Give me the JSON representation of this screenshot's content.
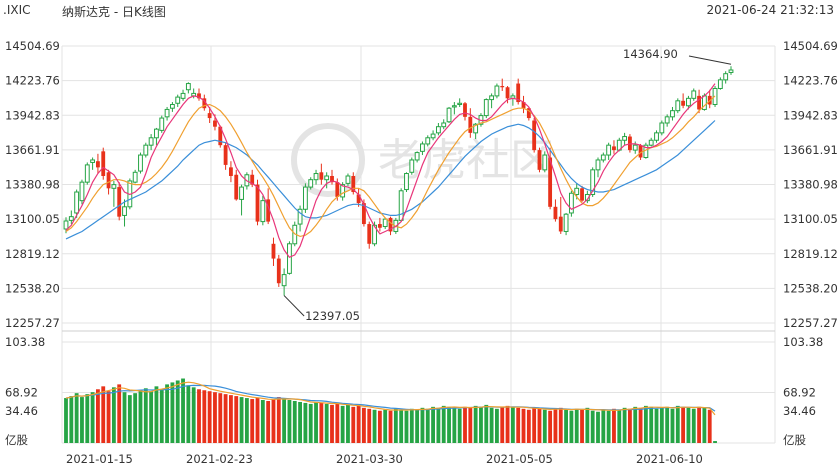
{
  "header": {
    "symbol": ".IXIC",
    "title": "纳斯达克 - 日K线图",
    "datetime": "2021-06-24 21:32:13"
  },
  "watermark": "老虎社区",
  "colors": {
    "up": "#26a445",
    "down": "#e8311a",
    "ma5": "#e8367a",
    "ma10": "#f0a030",
    "ma20": "#3a8fd9",
    "grid": "#e3e3e3"
  },
  "chart_data": {
    "type": "candlestick",
    "price_axis": {
      "ticks": [
        "14504.69",
        "14223.76",
        "13942.83",
        "13661.91",
        "13380.98",
        "13100.05",
        "12819.12",
        "12538.20",
        "12257.27"
      ],
      "range": [
        12257.27,
        14504.69
      ]
    },
    "volume_axis": {
      "ticks": [
        "103.38",
        "68.92",
        "34.46"
      ],
      "unit": "亿股",
      "range": [
        0,
        103.38
      ]
    },
    "x_labels": [
      "2021-01-15",
      "2021-02-23",
      "2021-03-30",
      "2021-05-05",
      "2021-06-10"
    ],
    "annotations": {
      "high": "14364.90",
      "low": "12397.05"
    },
    "candles": [
      [
        13020,
        13115,
        12985,
        13085
      ],
      [
        13090,
        13170,
        13060,
        13120
      ],
      [
        13150,
        13340,
        13110,
        13320
      ],
      [
        13250,
        13420,
        13220,
        13400
      ],
      [
        13400,
        13560,
        13380,
        13540
      ],
      [
        13560,
        13600,
        13500,
        13580
      ],
      [
        13570,
        13630,
        13470,
        13520
      ],
      [
        13650,
        13680,
        13420,
        13450
      ],
      [
        13480,
        13500,
        13300,
        13350
      ],
      [
        13350,
        13410,
        13200,
        13380
      ],
      [
        13360,
        13400,
        13090,
        13120
      ],
      [
        13130,
        13260,
        13040,
        13200
      ],
      [
        13200,
        13430,
        13180,
        13410
      ],
      [
        13400,
        13500,
        13390,
        13480
      ],
      [
        13490,
        13640,
        13470,
        13620
      ],
      [
        13620,
        13720,
        13600,
        13700
      ],
      [
        13700,
        13790,
        13660,
        13760
      ],
      [
        13760,
        13840,
        13700,
        13830
      ],
      [
        13820,
        13940,
        13800,
        13920
      ],
      [
        13930,
        14010,
        13900,
        13990
      ],
      [
        14000,
        14050,
        13970,
        14030
      ],
      [
        14040,
        14110,
        14010,
        14090
      ],
      [
        14080,
        14150,
        14060,
        14120
      ],
      [
        14150,
        14210,
        14120,
        14200
      ],
      [
        14100,
        14160,
        14080,
        14120
      ],
      [
        14120,
        14160,
        14060,
        14080
      ],
      [
        14080,
        14110,
        13980,
        14000
      ],
      [
        13960,
        14010,
        13880,
        13920
      ],
      [
        13900,
        13950,
        13820,
        13850
      ],
      [
        13850,
        13860,
        13680,
        13700
      ],
      [
        13700,
        13720,
        13500,
        13540
      ],
      [
        13520,
        13570,
        13400,
        13450
      ],
      [
        13460,
        13500,
        13250,
        13260
      ],
      [
        13260,
        13380,
        13130,
        13360
      ],
      [
        13370,
        13480,
        13340,
        13460
      ],
      [
        13460,
        13500,
        13360,
        13380
      ],
      [
        13380,
        13420,
        13050,
        13080
      ],
      [
        13080,
        13290,
        13050,
        13250
      ],
      [
        13260,
        13350,
        13060,
        13080
      ],
      [
        12900,
        12950,
        12720,
        12780
      ],
      [
        12780,
        12810,
        12550,
        12580
      ],
      [
        12560,
        12700,
        12480,
        12650
      ],
      [
        12660,
        12920,
        12650,
        12900
      ],
      [
        12900,
        13080,
        12880,
        13050
      ],
      [
        13060,
        13210,
        13000,
        13180
      ],
      [
        13180,
        13390,
        13150,
        13360
      ],
      [
        13360,
        13440,
        13340,
        13420
      ],
      [
        13420,
        13500,
        13380,
        13470
      ],
      [
        13480,
        13550,
        13380,
        13420
      ],
      [
        13420,
        13480,
        13350,
        13450
      ],
      [
        13450,
        13500,
        13380,
        13400
      ],
      [
        13400,
        13430,
        13250,
        13280
      ],
      [
        13280,
        13400,
        13250,
        13380
      ],
      [
        13390,
        13470,
        13370,
        13450
      ],
      [
        13450,
        13480,
        13300,
        13320
      ],
      [
        13300,
        13350,
        13200,
        13230
      ],
      [
        13230,
        13260,
        13040,
        13060
      ],
      [
        13060,
        13080,
        12860,
        12900
      ],
      [
        12900,
        13080,
        12880,
        13050
      ],
      [
        13060,
        13110,
        13000,
        13030
      ],
      [
        13040,
        13110,
        13020,
        13100
      ],
      [
        13110,
        13120,
        12970,
        13000
      ],
      [
        13000,
        13110,
        12980,
        13090
      ],
      [
        13090,
        13350,
        13080,
        13330
      ],
      [
        13340,
        13480,
        13320,
        13470
      ],
      [
        13480,
        13600,
        13460,
        13580
      ],
      [
        13580,
        13650,
        13560,
        13640
      ],
      [
        13650,
        13730,
        13620,
        13710
      ],
      [
        13710,
        13780,
        13690,
        13760
      ],
      [
        13760,
        13820,
        13740,
        13790
      ],
      [
        13800,
        13880,
        13780,
        13850
      ],
      [
        13850,
        13910,
        13830,
        13880
      ],
      [
        13890,
        14010,
        13880,
        14000
      ],
      [
        14010,
        14050,
        13950,
        14020
      ],
      [
        14030,
        14080,
        14010,
        14040
      ],
      [
        14040,
        14050,
        13900,
        13930
      ],
      [
        13930,
        14000,
        13760,
        13800
      ],
      [
        13800,
        13880,
        13750,
        13870
      ],
      [
        13870,
        13960,
        13850,
        13940
      ],
      [
        13940,
        14080,
        13920,
        14070
      ],
      [
        14070,
        14120,
        14000,
        14100
      ],
      [
        14100,
        14200,
        14080,
        14180
      ],
      [
        14180,
        14240,
        14140,
        14170
      ],
      [
        14170,
        14180,
        14040,
        14080
      ],
      [
        14080,
        14120,
        14020,
        14100
      ],
      [
        14200,
        14240,
        14030,
        14050
      ],
      [
        14050,
        14100,
        13960,
        14000
      ],
      [
        14000,
        14010,
        13900,
        13920
      ],
      [
        13900,
        13920,
        13640,
        13660
      ],
      [
        13660,
        13680,
        13480,
        13500
      ],
      [
        13500,
        13650,
        13480,
        13620
      ],
      [
        13600,
        13680,
        13180,
        13200
      ],
      [
        13200,
        13260,
        13080,
        13100
      ],
      [
        13120,
        13280,
        12980,
        13000
      ],
      [
        13000,
        13150,
        12970,
        13140
      ],
      [
        13150,
        13330,
        13120,
        13310
      ],
      [
        13300,
        13390,
        13260,
        13350
      ],
      [
        13350,
        13370,
        13240,
        13250
      ],
      [
        13250,
        13330,
        13230,
        13300
      ],
      [
        13300,
        13520,
        13280,
        13500
      ],
      [
        13500,
        13600,
        13440,
        13580
      ],
      [
        13580,
        13640,
        13560,
        13620
      ],
      [
        13620,
        13720,
        13580,
        13700
      ],
      [
        13690,
        13740,
        13630,
        13660
      ],
      [
        13660,
        13760,
        13650,
        13740
      ],
      [
        13740,
        13800,
        13700,
        13770
      ],
      [
        13770,
        13790,
        13640,
        13660
      ],
      [
        13660,
        13730,
        13630,
        13700
      ],
      [
        13700,
        13710,
        13580,
        13600
      ],
      [
        13600,
        13720,
        13590,
        13700
      ],
      [
        13700,
        13760,
        13690,
        13740
      ],
      [
        13740,
        13820,
        13720,
        13800
      ],
      [
        13800,
        13900,
        13780,
        13880
      ],
      [
        13880,
        13950,
        13850,
        13930
      ],
      [
        13930,
        14010,
        13900,
        13980
      ],
      [
        13980,
        14080,
        13960,
        14060
      ],
      [
        14060,
        14120,
        14000,
        14020
      ],
      [
        14020,
        14100,
        13990,
        14080
      ],
      [
        14080,
        14160,
        14060,
        14140
      ],
      [
        14100,
        14150,
        13960,
        13990
      ],
      [
        13990,
        14120,
        13980,
        14100
      ],
      [
        14100,
        14150,
        14000,
        14030
      ],
      [
        14030,
        14180,
        14010,
        14160
      ],
      [
        14160,
        14250,
        14150,
        14230
      ],
      [
        14230,
        14300,
        14200,
        14280
      ],
      [
        14290,
        14340,
        14270,
        14310
      ]
    ],
    "volumes": [
      46,
      48,
      51,
      47,
      50,
      52,
      55,
      58,
      53,
      57,
      60,
      52,
      49,
      51,
      54,
      56,
      53,
      58,
      55,
      60,
      62,
      64,
      66,
      59,
      57,
      55,
      54,
      53,
      52,
      51,
      50,
      49,
      48,
      47,
      46,
      45,
      46,
      44,
      43,
      45,
      47,
      46,
      44,
      43,
      42,
      41,
      40,
      42,
      41,
      40,
      39,
      40,
      38,
      39,
      37,
      38,
      36,
      35,
      34,
      33,
      34,
      33,
      35,
      34,
      33,
      35,
      34,
      36,
      35,
      37,
      36,
      38,
      37,
      36,
      35,
      37,
      36,
      38,
      37,
      39,
      36,
      35,
      37,
      38,
      37,
      36,
      35,
      34,
      36,
      35,
      34,
      33,
      35,
      36,
      34,
      33,
      35,
      34,
      36,
      33,
      32,
      34,
      33,
      35,
      34,
      36,
      35,
      37,
      36,
      38,
      37,
      35,
      36,
      37,
      35,
      38,
      37,
      36,
      35,
      37,
      36,
      34,
      2
    ],
    "ma5": [
      13010,
      13050,
      13130,
      13210,
      13300,
      13400,
      13470,
      13520,
      13490,
      13460,
      13390,
      13320,
      13300,
      13320,
      13360,
      13470,
      13600,
      13690,
      13770,
      13850,
      13910,
      13970,
      14030,
      14080,
      14100,
      14090,
      14060,
      14000,
      13930,
      13850,
      13750,
      13640,
      13520,
      13450,
      13410,
      13390,
      13360,
      13300,
      13200,
      13090,
      12950,
      12850,
      12790,
      12810,
      12880,
      13000,
      13120,
      13250,
      13340,
      13390,
      13410,
      13400,
      13370,
      13360,
      13340,
      13300,
      13220,
      13120,
      13040,
      12980,
      13000,
      13020,
      13040,
      13080,
      13180,
      13300,
      13420,
      13540,
      13640,
      13700,
      13760,
      13810,
      13860,
      13910,
      13950,
      13960,
      13950,
      13920,
      13900,
      13900,
      13930,
      13980,
      14030,
      14070,
      14080,
      14070,
      14050,
      14010,
      13930,
      13830,
      13710,
      13580,
      13450,
      13310,
      13230,
      13180,
      13200,
      13220,
      13260,
      13330,
      13400,
      13490,
      13560,
      13620,
      13660,
      13700,
      13710,
      13710,
      13700,
      13680,
      13680,
      13700,
      13730,
      13770,
      13830,
      13890,
      13950,
      14000,
      14040,
      14070,
      14100,
      14140,
      14200
    ],
    "ma10": [
      13000,
      13030,
      13080,
      13140,
      13200,
      13270,
      13330,
      13380,
      13400,
      13420,
      13420,
      13410,
      13390,
      13380,
      13380,
      13400,
      13430,
      13470,
      13520,
      13580,
      13650,
      13730,
      13810,
      13890,
      13950,
      14000,
      14020,
      14030,
      14010,
      13980,
      13930,
      13870,
      13800,
      13720,
      13640,
      13570,
      13500,
      13440,
      13370,
      13290,
      13200,
      13110,
      13030,
      12980,
      12960,
      12970,
      13000,
      13050,
      13110,
      13180,
      13240,
      13280,
      13310,
      13330,
      13350,
      13350,
      13330,
      13280,
      13220,
      13160,
      13110,
      13070,
      13040,
      13030,
      13060,
      13110,
      13170,
      13250,
      13340,
      13420,
      13500,
      13570,
      13640,
      13700,
      13760,
      13810,
      13840,
      13860,
      13880,
      13890,
      13910,
      13930,
      13950,
      13970,
      13990,
      14000,
      14000,
      13980,
      13940,
      13880,
      13800,
      13710,
      13610,
      13510,
      13420,
      13340,
      13280,
      13230,
      13210,
      13210,
      13230,
      13270,
      13320,
      13380,
      13440,
      13500,
      13560,
      13600,
      13640,
      13660,
      13680,
      13690,
      13710,
      13730,
      13760,
      13800,
      13840,
      13890,
      13930,
      13980,
      14020,
      14060,
      14100
    ],
    "ma20": [
      12940,
      12960,
      12980,
      13000,
      13030,
      13060,
      13090,
      13120,
      13150,
      13180,
      13210,
      13240,
      13260,
      13280,
      13300,
      13320,
      13350,
      13380,
      13410,
      13450,
      13490,
      13530,
      13580,
      13620,
      13660,
      13700,
      13720,
      13730,
      13740,
      13730,
      13720,
      13700,
      13680,
      13650,
      13620,
      13580,
      13540,
      13490,
      13440,
      13390,
      13340,
      13290,
      13240,
      13190,
      13150,
      13120,
      13110,
      13110,
      13120,
      13130,
      13150,
      13170,
      13190,
      13210,
      13220,
      13220,
      13210,
      13190,
      13170,
      13150,
      13140,
      13130,
      13130,
      13140,
      13160,
      13180,
      13210,
      13240,
      13280,
      13320,
      13360,
      13410,
      13460,
      13510,
      13560,
      13610,
      13650,
      13690,
      13730,
      13760,
      13790,
      13810,
      13830,
      13850,
      13860,
      13870,
      13860,
      13840,
      13810,
      13770,
      13720,
      13660,
      13600,
      13540,
      13480,
      13430,
      13390,
      13360,
      13340,
      13330,
      13320,
      13320,
      13330,
      13340,
      13360,
      13380,
      13400,
      13420,
      13440,
      13460,
      13480,
      13500,
      13530,
      13560,
      13590,
      13620,
      13660,
      13700,
      13740,
      13780,
      13820,
      13860,
      13900
    ]
  }
}
